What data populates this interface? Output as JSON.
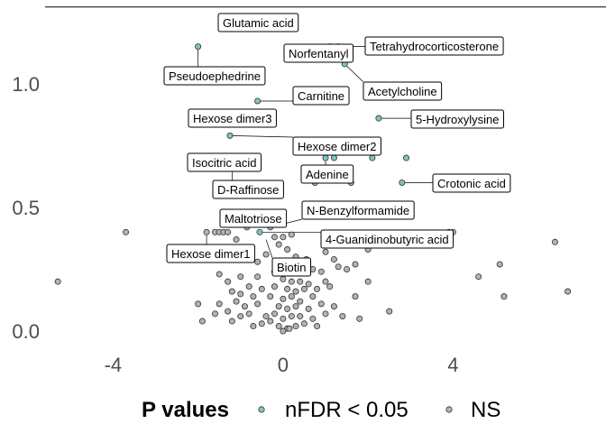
{
  "chart_data": {
    "type": "scatter",
    "title": "",
    "xlabel": "",
    "ylabel": "",
    "xlim": [
      -5.6,
      7.6
    ],
    "ylim": [
      -0.04,
      1.32
    ],
    "xticks": [
      -4,
      0,
      4
    ],
    "yticks": [
      0.0,
      0.5,
      1.0
    ],
    "xtick_labels": [
      "-4",
      "0",
      "4"
    ],
    "ytick_labels": [
      "0.0",
      "0.5",
      "1.0"
    ],
    "reference_line_y": 1.31,
    "grid": false,
    "legend": {
      "placement": "bottom",
      "title": "P values",
      "entries": [
        {
          "label": "nFDR < 0.05",
          "color": "#7fc4c4"
        },
        {
          "label": "NS",
          "color": "#b3b3b3"
        }
      ]
    },
    "series": [
      {
        "label": "nFDR < 0.05",
        "color": "#7fc4c4",
        "points": [
          {
            "x": -0.9,
            "y": 1.24
          },
          {
            "x": -2.0,
            "y": 1.15
          },
          {
            "x": 1.1,
            "y": 1.15
          },
          {
            "x": 1.3,
            "y": 1.15
          },
          {
            "x": 1.45,
            "y": 1.08
          },
          {
            "x": -0.6,
            "y": 0.93
          },
          {
            "x": 2.25,
            "y": 0.86
          },
          {
            "x": -1.1,
            "y": 0.85
          },
          {
            "x": -1.25,
            "y": 0.79
          },
          {
            "x": -1.2,
            "y": 0.68
          },
          {
            "x": 1.0,
            "y": 0.7
          },
          {
            "x": 1.2,
            "y": 0.7
          },
          {
            "x": 2.1,
            "y": 0.7
          },
          {
            "x": 2.9,
            "y": 0.7
          },
          {
            "x": 0.55,
            "y": 0.61
          },
          {
            "x": 0.75,
            "y": 0.6
          },
          {
            "x": 1.6,
            "y": 0.6
          },
          {
            "x": 2.8,
            "y": 0.6
          },
          {
            "x": -0.85,
            "y": 0.42
          },
          {
            "x": -0.3,
            "y": 0.42
          },
          {
            "x": -0.55,
            "y": 0.4
          }
        ],
        "labels": [
          {
            "text": "Glutamic acid",
            "x": -0.9,
            "y": 1.24
          },
          {
            "text": "Norfentanyl",
            "x": 1.1,
            "y": 1.15
          },
          {
            "text": "Tetrahydrocorticosterone",
            "x": 1.3,
            "y": 1.15
          },
          {
            "text": "Pseudoephedrine",
            "x": -2.0,
            "y": 1.15
          },
          {
            "text": "Carnitine",
            "x": -0.6,
            "y": 0.93
          },
          {
            "text": "Acetylcholine",
            "x": 1.45,
            "y": 1.08
          },
          {
            "text": "Hexose dimer3",
            "x": -1.1,
            "y": 0.85
          },
          {
            "text": "5-Hydroxylysine",
            "x": 2.25,
            "y": 0.86
          },
          {
            "text": "Hexose dimer2",
            "x": -1.25,
            "y": 0.79
          },
          {
            "text": "Isocitric acid",
            "x": -1.2,
            "y": 0.68
          },
          {
            "text": "Adenine",
            "x": 1.0,
            "y": 0.7
          },
          {
            "text": "Crotonic acid",
            "x": 2.8,
            "y": 0.6
          },
          {
            "text": "D-Raffinose",
            "x": -1.2,
            "y": 0.68
          },
          {
            "text": "N-Benzylformamide",
            "x": -0.3,
            "y": 0.42
          },
          {
            "text": "Maltotriose",
            "x": -0.85,
            "y": 0.42
          },
          {
            "text": "4-Guanidinobutyric acid",
            "x": -0.55,
            "y": 0.4
          },
          {
            "text": "Hexose dimer1",
            "x": -1.8,
            "y": 0.4
          },
          {
            "text": "Biotin",
            "x": -0.4,
            "y": 0.37
          }
        ]
      },
      {
        "label": "NS",
        "color": "#b3b3b3",
        "points": [
          {
            "x": -5.3,
            "y": 0.2
          },
          {
            "x": -3.7,
            "y": 0.4
          },
          {
            "x": -1.8,
            "y": 0.4
          },
          {
            "x": -1.6,
            "y": 0.4
          },
          {
            "x": -1.5,
            "y": 0.4
          },
          {
            "x": -1.4,
            "y": 0.4
          },
          {
            "x": -1.3,
            "y": 0.4
          },
          {
            "x": -1.1,
            "y": 0.37
          },
          {
            "x": 3.9,
            "y": 0.4
          },
          {
            "x": 4.0,
            "y": 0.4
          },
          {
            "x": 3.6,
            "y": 0.39
          },
          {
            "x": 3.0,
            "y": 0.38
          },
          {
            "x": 2.2,
            "y": 0.36
          },
          {
            "x": 2.0,
            "y": 0.33
          },
          {
            "x": 6.4,
            "y": 0.36
          },
          {
            "x": 5.1,
            "y": 0.27
          },
          {
            "x": 4.6,
            "y": 0.22
          },
          {
            "x": 5.2,
            "y": 0.14
          },
          {
            "x": 6.7,
            "y": 0.16
          },
          {
            "x": -0.2,
            "y": 0.38
          },
          {
            "x": 0.0,
            "y": 0.38
          },
          {
            "x": 0.2,
            "y": 0.39
          },
          {
            "x": -0.1,
            "y": 0.35
          },
          {
            "x": 0.1,
            "y": 0.33
          },
          {
            "x": -0.4,
            "y": 0.31
          },
          {
            "x": 0.3,
            "y": 0.3
          },
          {
            "x": 1.0,
            "y": 0.32
          },
          {
            "x": 1.2,
            "y": 0.29
          },
          {
            "x": 0.5,
            "y": 0.25
          },
          {
            "x": 0.7,
            "y": 0.25
          },
          {
            "x": 0.9,
            "y": 0.24
          },
          {
            "x": 1.3,
            "y": 0.26
          },
          {
            "x": 1.5,
            "y": 0.25
          },
          {
            "x": -0.2,
            "y": 0.24
          },
          {
            "x": -0.6,
            "y": 0.22
          },
          {
            "x": -1.0,
            "y": 0.22
          },
          {
            "x": -1.5,
            "y": 0.23
          },
          {
            "x": -1.3,
            "y": 0.2
          },
          {
            "x": 0.0,
            "y": 0.21
          },
          {
            "x": 0.2,
            "y": 0.2
          },
          {
            "x": 0.4,
            "y": 0.2
          },
          {
            "x": 0.6,
            "y": 0.19
          },
          {
            "x": 1.0,
            "y": 0.2
          },
          {
            "x": 1.1,
            "y": 0.18
          },
          {
            "x": -0.8,
            "y": 0.18
          },
          {
            "x": -0.5,
            "y": 0.17
          },
          {
            "x": -0.2,
            "y": 0.18
          },
          {
            "x": 0.1,
            "y": 0.17
          },
          {
            "x": 0.3,
            "y": 0.16
          },
          {
            "x": 0.5,
            "y": 0.17
          },
          {
            "x": 0.8,
            "y": 0.17
          },
          {
            "x": -1.2,
            "y": 0.16
          },
          {
            "x": -1.0,
            "y": 0.15
          },
          {
            "x": -0.7,
            "y": 0.14
          },
          {
            "x": -0.3,
            "y": 0.14
          },
          {
            "x": 0.0,
            "y": 0.13
          },
          {
            "x": 0.2,
            "y": 0.14
          },
          {
            "x": 0.4,
            "y": 0.12
          },
          {
            "x": 0.7,
            "y": 0.14
          },
          {
            "x": -1.5,
            "y": 0.11
          },
          {
            "x": -1.1,
            "y": 0.12
          },
          {
            "x": -0.9,
            "y": 0.1
          },
          {
            "x": -0.6,
            "y": 0.11
          },
          {
            "x": -0.1,
            "y": 0.1
          },
          {
            "x": 0.1,
            "y": 0.09
          },
          {
            "x": 0.3,
            "y": 0.1
          },
          {
            "x": 0.6,
            "y": 0.09
          },
          {
            "x": 0.9,
            "y": 0.11
          },
          {
            "x": 1.2,
            "y": 0.1
          },
          {
            "x": -1.6,
            "y": 0.07
          },
          {
            "x": -1.3,
            "y": 0.08
          },
          {
            "x": -1.0,
            "y": 0.06
          },
          {
            "x": -0.8,
            "y": 0.07
          },
          {
            "x": -0.4,
            "y": 0.06
          },
          {
            "x": -0.2,
            "y": 0.07
          },
          {
            "x": 0.0,
            "y": 0.05
          },
          {
            "x": 0.2,
            "y": 0.06
          },
          {
            "x": 0.4,
            "y": 0.06
          },
          {
            "x": 0.7,
            "y": 0.05
          },
          {
            "x": 1.0,
            "y": 0.07
          },
          {
            "x": 1.4,
            "y": 0.06
          },
          {
            "x": 1.8,
            "y": 0.05
          },
          {
            "x": -1.9,
            "y": 0.04
          },
          {
            "x": -1.2,
            "y": 0.04
          },
          {
            "x": -0.5,
            "y": 0.03
          },
          {
            "x": -0.1,
            "y": 0.02
          },
          {
            "x": 0.1,
            "y": 0.01
          },
          {
            "x": 0.3,
            "y": 0.02
          },
          {
            "x": 0.5,
            "y": 0.03
          },
          {
            "x": 0.0,
            "y": 0.0
          },
          {
            "x": 0.15,
            "y": 0.01
          },
          {
            "x": -0.3,
            "y": 0.04
          },
          {
            "x": 0.8,
            "y": 0.02
          },
          {
            "x": -0.7,
            "y": 0.02
          },
          {
            "x": -2.0,
            "y": 0.11
          },
          {
            "x": 1.7,
            "y": 0.14
          },
          {
            "x": 2.5,
            "y": 0.08
          },
          {
            "x": 2.0,
            "y": 0.2
          },
          {
            "x": -0.6,
            "y": 0.28
          },
          {
            "x": -0.15,
            "y": 0.27
          },
          {
            "x": 0.55,
            "y": 0.29
          },
          {
            "x": -1.4,
            "y": 0.29
          },
          {
            "x": 1.7,
            "y": 0.27
          }
        ]
      }
    ]
  }
}
